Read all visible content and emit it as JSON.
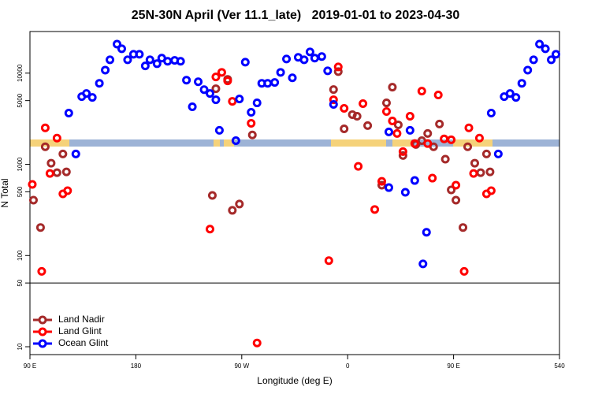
{
  "chart_data": {
    "type": "scatter",
    "title": "25N-30N April (Ver 11.1_late)   2019-01-01 to 2023-04-30",
    "xlabel": "Longitude (deg E)",
    "ylabel": "N Total",
    "xlim": [
      90,
      540
    ],
    "xticks": [
      {
        "value": 90,
        "label": "90 E"
      },
      180,
      {
        "value": 270,
        "label": "90 W"
      },
      {
        "value": 360,
        "label": "0"
      },
      {
        "value": 450,
        "label": "90 E"
      },
      540
    ],
    "ylim": [
      8.2,
      28600
    ],
    "ylog": true,
    "yticks": [
      10,
      50,
      100,
      500,
      1000,
      5000,
      10000
    ],
    "hline": 50,
    "legend": "bottomleft",
    "series": [
      {
        "name": "Land Nadir",
        "color": "#a52a2a",
        "x": [
          93,
          99,
          103,
          108,
          113,
          118,
          121,
          245,
          248,
          258,
          262,
          268,
          279,
          348,
          352,
          357,
          364,
          368,
          377,
          389,
          393,
          398,
          403,
          407,
          418,
          423,
          428,
          433,
          438,
          443,
          448,
          452,
          458,
          462,
          468,
          473,
          478,
          481
        ],
        "values": [
          405,
          203,
          1560,
          1030,
          811,
          1300,
          826,
          456,
          6750,
          8550,
          313,
          367,
          2100,
          6610,
          10400,
          2450,
          3510,
          3370,
          2660,
          591,
          4720,
          7020,
          2710,
          1250,
          1650,
          1820,
          2180,
          1560,
          2770,
          1140,
          525,
          405,
          203,
          1560,
          1030,
          811,
          1300,
          826
        ]
      },
      {
        "name": "Land Glint",
        "color": "#ff0000",
        "x": [
          92,
          100,
          103,
          107,
          113,
          118,
          122,
          243,
          248,
          253,
          258,
          262,
          278,
          283,
          344,
          348,
          352,
          357,
          369,
          373,
          383,
          389,
          393,
          398,
          402,
          407,
          413,
          417,
          423,
          428,
          432,
          437,
          442,
          448,
          452,
          459,
          463,
          467,
          472,
          478,
          482
        ],
        "values": [
          603,
          67,
          2510,
          794,
          1940,
          475,
          514,
          195,
          9080,
          10200,
          8220,
          4910,
          2820,
          11,
          88,
          5110,
          11700,
          4110,
          951,
          4630,
          320,
          651,
          3800,
          2990,
          2180,
          1380,
          3370,
          1690,
          6350,
          1690,
          706,
          5760,
          1900,
          1860,
          591,
          67,
          2510,
          794,
          1940,
          475,
          514
        ]
      },
      {
        "name": "Ocean Glint",
        "color": "#0000ff",
        "x": [
          129,
          123,
          134,
          138,
          143,
          149,
          154,
          158,
          164,
          168,
          173,
          178,
          183,
          188,
          192,
          198,
          202,
          207,
          213,
          218,
          223,
          228,
          233,
          238,
          243,
          248,
          251,
          265,
          268,
          273,
          278,
          283,
          287,
          292,
          298,
          303,
          308,
          313,
          318,
          323,
          328,
          332,
          338,
          343,
          348,
          395,
          395,
          409,
          413,
          417,
          424,
          427,
          488,
          482,
          493,
          498,
          503,
          508,
          513,
          518,
          523,
          528,
          533,
          537
        ],
        "values": [
          1300,
          3650,
          5530,
          5980,
          5420,
          7740,
          10800,
          14000,
          20800,
          18500,
          14000,
          16100,
          16100,
          12000,
          14000,
          12700,
          14600,
          13500,
          13800,
          13500,
          8380,
          4280,
          8050,
          6600,
          5980,
          5110,
          2360,
          1820,
          5210,
          13200,
          3720,
          4720,
          7740,
          7740,
          7900,
          10200,
          14300,
          8890,
          14900,
          14000,
          17100,
          14600,
          15200,
          10600,
          4540,
          2270,
          556,
          494,
          2360,
          665,
          81,
          180,
          1300,
          3650,
          5530,
          5980,
          5420,
          7740,
          10800,
          14000,
          20800,
          18500,
          14000,
          16100
        ]
      }
    ]
  }
}
